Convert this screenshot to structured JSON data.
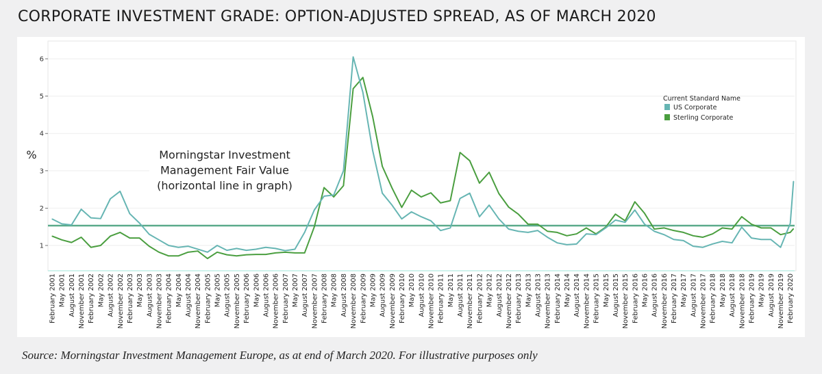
{
  "title": "CORPORATE INVESTMENT GRADE: OPTION-ADJUSTED SPREAD, AS OF MARCH 2020",
  "source": "Source: Morningstar Investment Management Europe, as at end of March 2020. For illustrative purposes only",
  "chart_data": {
    "type": "line",
    "title": "",
    "ylabel": "%",
    "xlabel": "",
    "ylim": [
      0.32,
      6.37
    ],
    "yticks": [
      1,
      2,
      3,
      4,
      5,
      6
    ],
    "grid": true,
    "legend": {
      "title": "Current Standard Name",
      "placement": "top-right"
    },
    "annotation": [
      "Morningstar Investment",
      "Management Fair Value",
      "(horizontal line in graph)"
    ],
    "fair_value": 1.53,
    "colors": {
      "US Corporate": "#66b5b3",
      "Sterling Corporate": "#4a9e3f",
      "fair_value": "#5aaa8a"
    },
    "x_ticks": [
      "February 2001",
      "May 2001",
      "August 2001",
      "November 2001",
      "February 2002",
      "May 2002",
      "August 2002",
      "November 2002",
      "February 2003",
      "May 2003",
      "August 2003",
      "November 2003",
      "February 2004",
      "May 2004",
      "August 2004",
      "November 2004",
      "February 2005",
      "May 2005",
      "August 2005",
      "November 2005",
      "February 2006",
      "May 2006",
      "August 2006",
      "November 2006",
      "February 2007",
      "May 2007",
      "August 2007",
      "November 2007",
      "February 2008",
      "May 2008",
      "August 2008",
      "November 2008",
      "February 2009",
      "May 2009",
      "August 2009",
      "November 2009",
      "February 2010",
      "May 2010",
      "August 2010",
      "November 2010",
      "February 2011",
      "May 2011",
      "August 2011",
      "November 2011",
      "February 2012",
      "May 2012",
      "August 2012",
      "November 2012",
      "February 2013",
      "May 2013",
      "August 2013",
      "November 2013",
      "February 2014",
      "May 2014",
      "August 2014",
      "November 2014",
      "February 2015",
      "May 2015",
      "August 2015",
      "November 2015",
      "February 2016",
      "May 2016",
      "August 2016",
      "November 2016",
      "February 2017",
      "May 2017",
      "August 2017",
      "November 2017",
      "February 2018",
      "May 2018",
      "August 2018",
      "November 2018",
      "February 2019",
      "May 2019",
      "August 2019",
      "November 2019",
      "February 2020"
    ],
    "x": [
      "2001-02",
      "2001-05",
      "2001-08",
      "2001-11",
      "2002-02",
      "2002-05",
      "2002-08",
      "2002-11",
      "2003-02",
      "2003-05",
      "2003-08",
      "2003-11",
      "2004-02",
      "2004-05",
      "2004-08",
      "2004-11",
      "2005-02",
      "2005-05",
      "2005-08",
      "2005-11",
      "2006-02",
      "2006-05",
      "2006-08",
      "2006-11",
      "2007-02",
      "2007-05",
      "2007-08",
      "2007-11",
      "2008-02",
      "2008-05",
      "2008-08",
      "2008-11",
      "2009-02",
      "2009-05",
      "2009-08",
      "2009-11",
      "2010-02",
      "2010-05",
      "2010-08",
      "2010-11",
      "2011-02",
      "2011-05",
      "2011-08",
      "2011-11",
      "2012-02",
      "2012-05",
      "2012-08",
      "2012-11",
      "2013-02",
      "2013-05",
      "2013-08",
      "2013-11",
      "2014-02",
      "2014-05",
      "2014-08",
      "2014-11",
      "2015-02",
      "2015-05",
      "2015-08",
      "2015-11",
      "2016-02",
      "2016-05",
      "2016-08",
      "2016-11",
      "2017-02",
      "2017-05",
      "2017-08",
      "2017-11",
      "2018-02",
      "2018-05",
      "2018-08",
      "2018-11",
      "2019-02",
      "2019-05",
      "2019-08",
      "2019-11",
      "2020-02",
      "2020-03"
    ],
    "series": [
      {
        "name": "US Corporate",
        "values": [
          1.71,
          1.58,
          1.55,
          1.97,
          1.74,
          1.72,
          2.25,
          2.45,
          1.85,
          1.6,
          1.3,
          1.15,
          1.0,
          0.95,
          0.98,
          0.9,
          0.82,
          1.0,
          0.87,
          0.92,
          0.87,
          0.9,
          0.95,
          0.92,
          0.86,
          0.9,
          1.35,
          1.95,
          2.32,
          2.35,
          3.0,
          6.05,
          5.1,
          3.55,
          2.4,
          2.08,
          1.71,
          1.9,
          1.77,
          1.66,
          1.4,
          1.47,
          2.26,
          2.4,
          1.77,
          2.08,
          1.71,
          1.44,
          1.38,
          1.35,
          1.4,
          1.22,
          1.07,
          1.02,
          1.04,
          1.31,
          1.29,
          1.47,
          1.68,
          1.62,
          1.95,
          1.57,
          1.38,
          1.29,
          1.16,
          1.13,
          0.98,
          0.95,
          1.04,
          1.11,
          1.07,
          1.49,
          1.2,
          1.16,
          1.16,
          0.95,
          1.59,
          2.72
        ]
      },
      {
        "name": "Sterling Corporate",
        "values": [
          1.25,
          1.15,
          1.08,
          1.22,
          0.95,
          1.0,
          1.25,
          1.35,
          1.2,
          1.2,
          0.98,
          0.82,
          0.72,
          0.72,
          0.82,
          0.85,
          0.65,
          0.82,
          0.75,
          0.72,
          0.75,
          0.76,
          0.76,
          0.8,
          0.82,
          0.8,
          0.8,
          1.5,
          2.55,
          2.3,
          2.6,
          5.2,
          5.5,
          4.46,
          3.12,
          2.54,
          2.02,
          2.48,
          2.3,
          2.41,
          2.14,
          2.2,
          3.49,
          3.27,
          2.67,
          2.96,
          2.39,
          2.03,
          1.84,
          1.57,
          1.57,
          1.38,
          1.35,
          1.26,
          1.31,
          1.47,
          1.31,
          1.49,
          1.84,
          1.66,
          2.17,
          1.86,
          1.44,
          1.47,
          1.4,
          1.35,
          1.26,
          1.22,
          1.31,
          1.47,
          1.44,
          1.77,
          1.57,
          1.47,
          1.47,
          1.29,
          1.35,
          1.45
        ]
      }
    ]
  }
}
